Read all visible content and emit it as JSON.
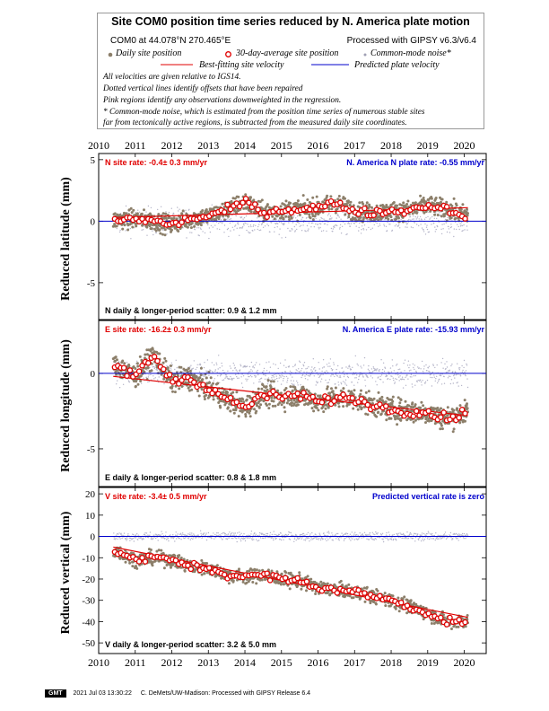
{
  "legend": {
    "title": "Site COM0 position time series reduced by N. America plate motion",
    "location": "COM0 at 44.078°N 270.465°E",
    "processed": "Processed with GIPSY v6.3/v6.4",
    "daily": "Daily site position",
    "avg30": "30-day-average site position",
    "cm_noise": "Common-mode noise*",
    "best_fit": "Best-fitting site velocity",
    "predicted": "Predicted plate velocity",
    "note1": "All velocities are given relative to IGS14.",
    "note2": "Dotted vertical lines identify offsets that have been repaired",
    "note3": "Pink regions identify any observations downweighted in the regression.",
    "note4": "* Common-mode noise, which is estimated from the position time series of numerous stable sites",
    "note5": "far from tectonically active regions, is subtracted from the measured daily site coordinates."
  },
  "colors": {
    "daily": "#8c7f6a",
    "noise": "#b4b4c8",
    "avg_fill": "#ffffff",
    "avg_edge": "#e00000",
    "fit": "#e00000",
    "plate": "#0000cc"
  },
  "panels": {
    "north": {
      "ylabel": "Reduced latitude (mm)",
      "rate": "N site rate:  -0.4± 0.3 mm/yr",
      "plate": "N. America N plate rate:  -0.55 mm/yr",
      "scatter": "N daily & longer-period scatter:   0.9 &   1.2 mm"
    },
    "east": {
      "ylabel": "Reduced longitude (mm)",
      "rate": "E site rate:  -16.2± 0.3 mm/yr",
      "plate": "N. America E plate rate:  -15.93 mm/yr",
      "scatter": "E daily & longer-period scatter:   0.8 &   1.8 mm"
    },
    "vertical": {
      "ylabel": "Reduced vertical (mm)",
      "rate": "V site rate:  -3.4± 0.5 mm/yr",
      "plate": "Predicted vertical rate is zero",
      "scatter": "V daily & longer-period scatter:   3.2 &   5.0 mm"
    }
  },
  "footer": {
    "logo": "GMT",
    "timestamp": "2021 Jul 03 13:30:22",
    "credit": "C. DeMets/UW-Madison: Processed with GIPSY Release 6.4"
  },
  "chart_data": [
    {
      "type": "scatter",
      "component": "north",
      "title": "Site COM0 position time series reduced by N. America plate motion",
      "xlabel": "",
      "ylabel": "Reduced latitude (mm)",
      "xlim": [
        2010,
        2020.6
      ],
      "ylim": [
        -8,
        5.5
      ],
      "x_ticks": [
        2010,
        2011,
        2012,
        2013,
        2014,
        2015,
        2016,
        2017,
        2018,
        2019,
        2020
      ],
      "y_ticks": [
        -5,
        0,
        5
      ],
      "start": 2010.4,
      "end": 2020.1,
      "fit": {
        "x": [
          2010.4,
          2020.1
        ],
        "y": [
          0.3,
          1.1
        ]
      },
      "plate_line": {
        "y": 0
      },
      "daily_scatter_mm": 0.9,
      "monthly_avg": {
        "x": [
          2010.5,
          2011.0,
          2011.5,
          2012.0,
          2012.5,
          2013.0,
          2013.5,
          2014.0,
          2014.5,
          2015.0,
          2015.5,
          2016.0,
          2016.5,
          2017.0,
          2017.5,
          2018.0,
          2018.5,
          2019.0,
          2019.5,
          2020.0
        ],
        "y": [
          0.1,
          0.2,
          0.0,
          -0.3,
          0.2,
          0.4,
          0.9,
          1.6,
          0.7,
          0.9,
          1.0,
          1.1,
          1.5,
          0.8,
          0.7,
          0.8,
          0.9,
          1.3,
          1.0,
          0.5
        ]
      }
    },
    {
      "type": "scatter",
      "component": "east",
      "xlabel": "",
      "ylabel": "Reduced longitude (mm)",
      "xlim": [
        2010,
        2020.6
      ],
      "ylim": [
        -7.5,
        3.5
      ],
      "x_ticks": [
        2010,
        2011,
        2012,
        2013,
        2014,
        2015,
        2016,
        2017,
        2018,
        2019,
        2020
      ],
      "y_ticks": [
        -5,
        0
      ],
      "start": 2010.4,
      "end": 2020.1,
      "fit": {
        "x": [
          2010.4,
          2020.1
        ],
        "y": [
          -0.2,
          -2.8
        ]
      },
      "plate_line": {
        "y": 0
      },
      "daily_scatter_mm": 0.8,
      "monthly_avg": {
        "x": [
          2010.5,
          2011.0,
          2011.5,
          2012.0,
          2012.5,
          2013.0,
          2013.5,
          2014.0,
          2014.5,
          2015.0,
          2015.5,
          2016.0,
          2016.5,
          2017.0,
          2017.5,
          2018.0,
          2018.5,
          2019.0,
          2019.5,
          2020.0
        ],
        "y": [
          0.5,
          -0.2,
          1.2,
          -0.5,
          -0.3,
          -1.0,
          -1.7,
          -2.3,
          -1.4,
          -1.6,
          -1.4,
          -1.9,
          -1.6,
          -1.7,
          -2.1,
          -2.4,
          -2.5,
          -2.6,
          -3.0,
          -2.6
        ]
      }
    },
    {
      "type": "scatter",
      "component": "vertical",
      "xlabel": "",
      "ylabel": "Reduced vertical (mm)",
      "xlim": [
        2010,
        2020.6
      ],
      "ylim": [
        -55,
        23
      ],
      "x_ticks": [
        2010,
        2011,
        2012,
        2013,
        2014,
        2015,
        2016,
        2017,
        2018,
        2019,
        2020
      ],
      "y_ticks": [
        -50,
        -40,
        -30,
        -20,
        -10,
        0,
        10,
        20
      ],
      "start": 2010.4,
      "end": 2020.1,
      "fit": {
        "x": [
          2010.4,
          2020.1
        ],
        "y": [
          -5,
          -38
        ]
      },
      "plate_line": {
        "y": 0
      },
      "daily_scatter_mm": 3.2,
      "monthly_avg": {
        "x": [
          2010.5,
          2011.0,
          2011.5,
          2012.0,
          2012.5,
          2013.0,
          2013.5,
          2014.0,
          2014.5,
          2015.0,
          2015.5,
          2016.0,
          2016.5,
          2017.0,
          2017.5,
          2018.0,
          2018.5,
          2019.0,
          2019.5,
          2020.0
        ],
        "y": [
          -7,
          -11,
          -10,
          -11,
          -14,
          -15,
          -18,
          -19,
          -18,
          -20,
          -21,
          -24,
          -25,
          -26,
          -28,
          -30,
          -33,
          -36,
          -40,
          -40
        ]
      }
    }
  ]
}
